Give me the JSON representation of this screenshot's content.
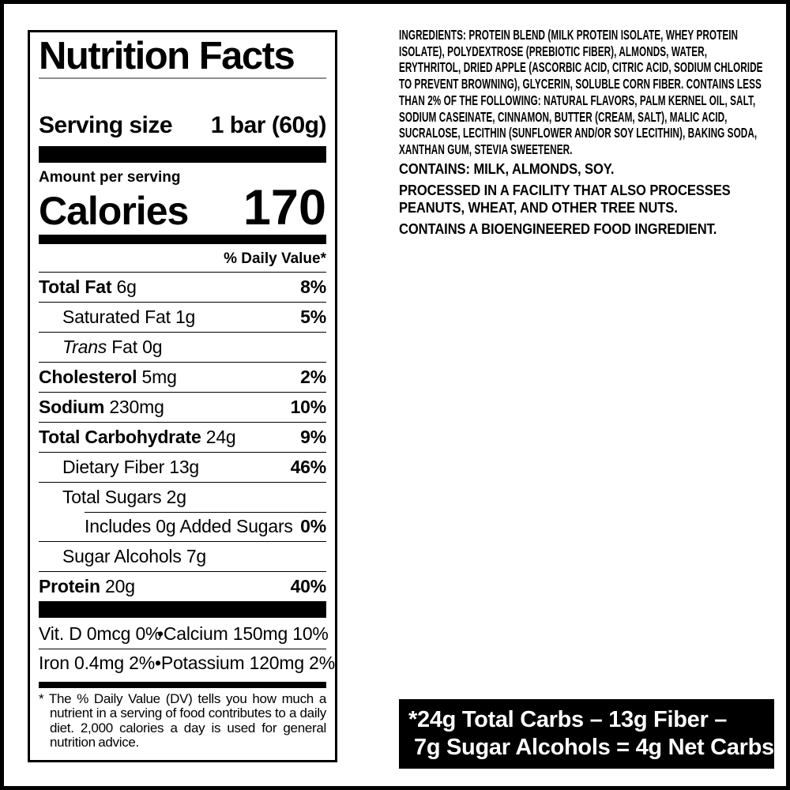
{
  "label": {
    "title": "Nutrition Facts",
    "serving_size_label": "Serving size",
    "serving_size_value": "1 bar (60g)",
    "amount_per_serving": "Amount per serving",
    "calories_label": "Calories",
    "calories_value": "170",
    "daily_value_header": "% Daily Value*",
    "rows": [
      {
        "b": "Total Fat",
        "t": "6g",
        "dv": "8%",
        "indent": 0
      },
      {
        "t": "Saturated Fat 1g",
        "dv": "5%",
        "indent": 1
      },
      {
        "i": "Trans",
        "t": "Fat 0g",
        "dv": "",
        "indent": 1
      },
      {
        "b": "Cholesterol",
        "t": "5mg",
        "dv": "2%",
        "indent": 0
      },
      {
        "b": "Sodium",
        "t": "230mg",
        "dv": "10%",
        "indent": 0
      },
      {
        "b": "Total Carbohydrate",
        "t": "24g",
        "dv": "9%",
        "indent": 0
      },
      {
        "t": "Dietary Fiber 13g",
        "dv": "46%",
        "indent": 1
      },
      {
        "t": "Total Sugars 2g",
        "dv": "",
        "indent": 1
      },
      {
        "t": "Includes 0g Added Sugars",
        "dv": "0%",
        "indent": 2,
        "rule_indent": true
      },
      {
        "t": "Sugar Alcohols 7g",
        "dv": "",
        "indent": 1
      },
      {
        "b": "Protein",
        "t": "20g",
        "dv": "40%",
        "indent": 0
      }
    ],
    "micros_bullet": "•",
    "micros": [
      {
        "left": "Vit. D 0mcg 0%",
        "right": "Calcium 150mg 10%"
      },
      {
        "left": "Iron 0.4mg 2%",
        "right": "Potassium 120mg 2%"
      }
    ],
    "footnote": "* The % Daily Value (DV) tells you how much a nutrient in a serving of food contributes to a daily diet. 2,000 calories a day is used for general nutrition advice."
  },
  "right": {
    "ingredients_label": "INGREDIENTS:",
    "ingredients_text": "PROTEIN BLEND (MILK PROTEIN ISOLATE, WHEY PROTEIN ISOLATE), POLYDEXTROSE (PREBIOTIC FIBER), ALMONDS, WATER, ERYTHRITOL, DRIED APPLE (ASCORBIC ACID, CITRIC ACID, SODIUM CHLORIDE TO PREVENT BROWNING), GLYCERIN, SOLUBLE CORN FIBER. CONTAINS LESS THAN 2% OF THE FOLLOWING: NATURAL FLAVORS, PALM KERNEL OIL, SALT, SODIUM CASEINATE, CINNAMON, BUTTER (CREAM, SALT), MALIC ACID, SUCRALOSE, LECITHIN (SUNFLOWER AND/OR SOY LECITHIN), BAKING SODA, XANTHAN GUM, STEVIA SWEETENER.",
    "contains": "CONTAINS: MILK, ALMONDS, SOY.",
    "processed": "PROCESSED IN A FACILITY THAT ALSO PROCESSES PEANUTS, WHEAT, AND OTHER TREE NUTS.",
    "bioengineered": "CONTAINS A BIOENGINEERED FOOD INGREDIENT."
  },
  "banner": {
    "line1": "*24g Total Carbs – 13g Fiber –",
    "line2": "7g Sugar Alcohols = 4g Net Carbs",
    "bg": "#000000",
    "fg": "#ffffff"
  },
  "colors": {
    "frame": "#000000",
    "title_rule": "#8e8e8e"
  }
}
